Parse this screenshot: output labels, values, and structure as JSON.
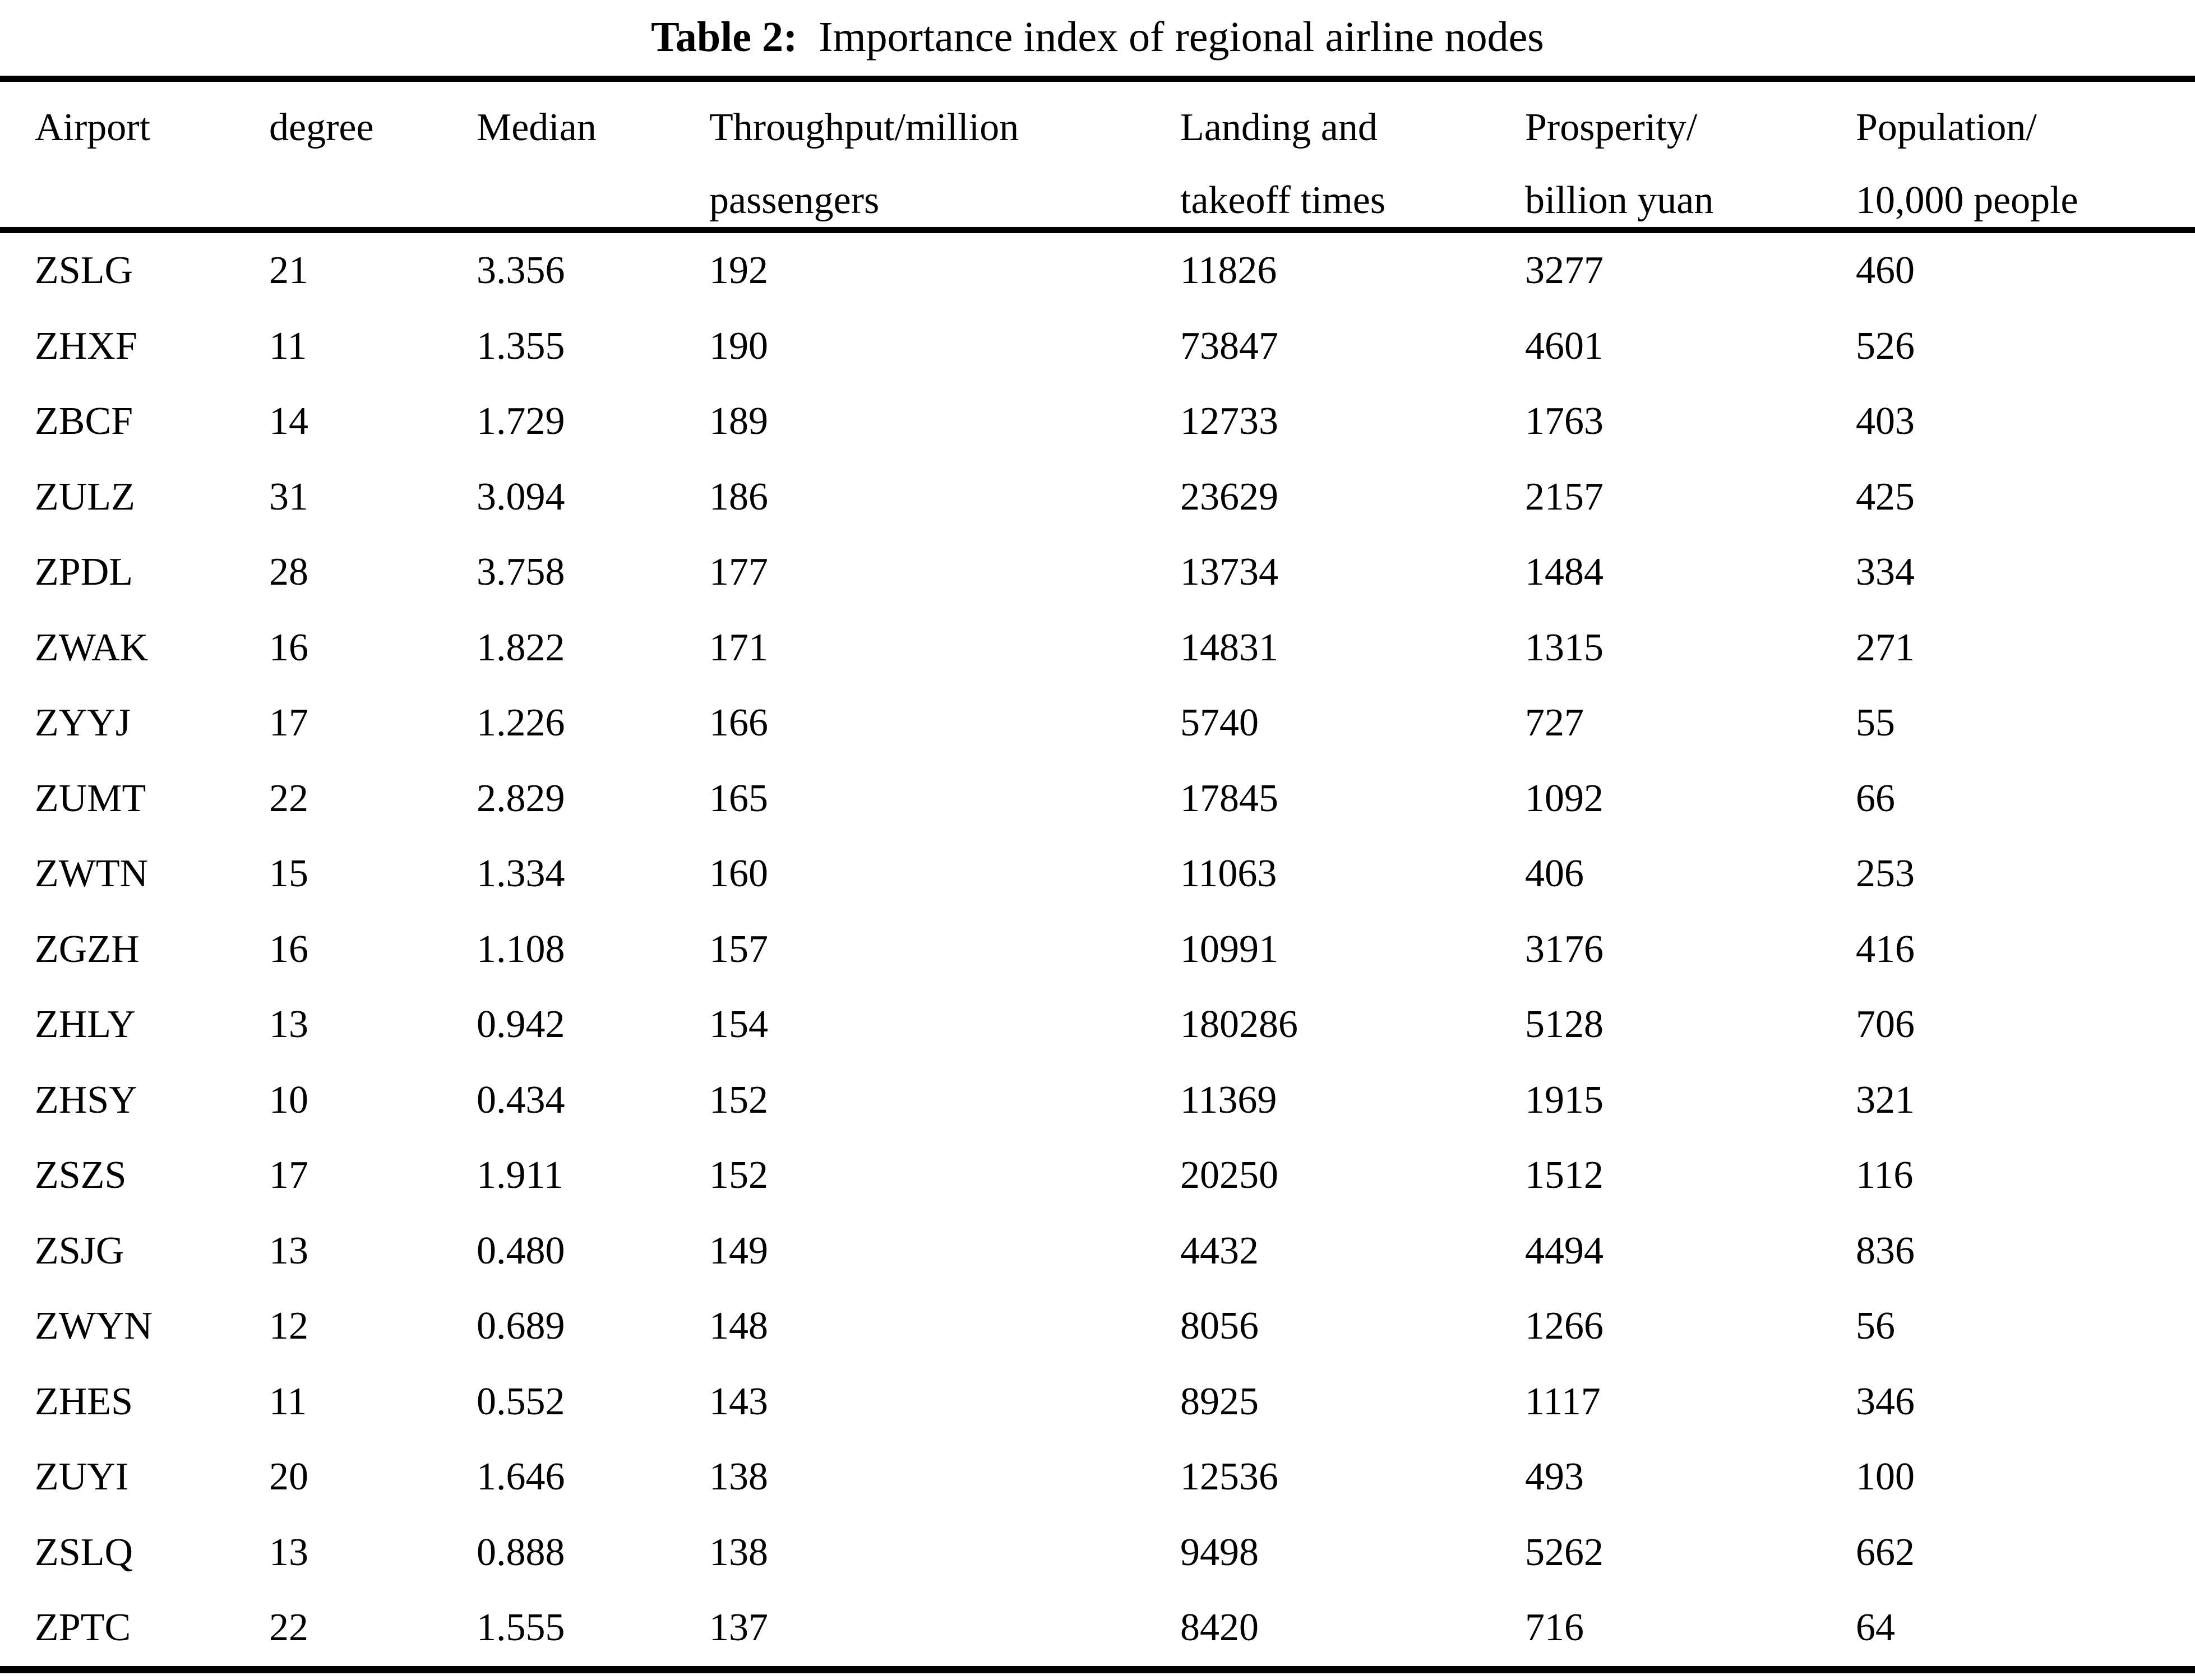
{
  "caption": {
    "label": "Table 2:",
    "text": "Importance index of regional airline nodes"
  },
  "headers": [
    {
      "line1": "Airport",
      "line2": ""
    },
    {
      "line1": "degree",
      "line2": ""
    },
    {
      "line1": "Median",
      "line2": ""
    },
    {
      "line1": "Throughput/million",
      "line2": "passengers"
    },
    {
      "line1": "Landing and",
      "line2": "takeoff times"
    },
    {
      "line1": "Prosperity/",
      "line2": "billion yuan"
    },
    {
      "line1": "Population/",
      "line2": "10,000 people"
    }
  ],
  "chart_data": {
    "type": "table",
    "title": "Table 2: Importance index of regional airline nodes",
    "columns": [
      "Airport",
      "degree",
      "Median",
      "Throughput/million passengers",
      "Landing and takeoff times",
      "Prosperity/billion yuan",
      "Population/10,000 people"
    ],
    "rows": [
      [
        "ZSLG",
        "21",
        "3.356",
        "192",
        "11826",
        "3277",
        "460"
      ],
      [
        "ZHXF",
        "11",
        "1.355",
        "190",
        "73847",
        "4601",
        "526"
      ],
      [
        "ZBCF",
        "14",
        "1.729",
        "189",
        "12733",
        "1763",
        "403"
      ],
      [
        "ZULZ",
        "31",
        "3.094",
        "186",
        "23629",
        "2157",
        "425"
      ],
      [
        "ZPDL",
        "28",
        "3.758",
        "177",
        "13734",
        "1484",
        "334"
      ],
      [
        "ZWAK",
        "16",
        "1.822",
        "171",
        "14831",
        "1315",
        "271"
      ],
      [
        "ZYYJ",
        "17",
        "1.226",
        "166",
        "5740",
        "727",
        "55"
      ],
      [
        "ZUMT",
        "22",
        "2.829",
        "165",
        "17845",
        "1092",
        "66"
      ],
      [
        "ZWTN",
        "15",
        "1.334",
        "160",
        "11063",
        "406",
        "253"
      ],
      [
        "ZGZH",
        "16",
        "1.108",
        "157",
        "10991",
        "3176",
        "416"
      ],
      [
        "ZHLY",
        "13",
        "0.942",
        "154",
        "180286",
        "5128",
        "706"
      ],
      [
        "ZHSY",
        "10",
        "0.434",
        "152",
        "11369",
        "1915",
        "321"
      ],
      [
        "ZSZS",
        "17",
        "1.911",
        "152",
        "20250",
        "1512",
        "116"
      ],
      [
        "ZSJG",
        "13",
        "0.480",
        "149",
        "4432",
        "4494",
        "836"
      ],
      [
        "ZWYN",
        "12",
        "0.689",
        "148",
        "8056",
        "1266",
        "56"
      ],
      [
        "ZHES",
        "11",
        "0.552",
        "143",
        "8925",
        "1117",
        "346"
      ],
      [
        "ZUYI",
        "20",
        "1.646",
        "138",
        "12536",
        "493",
        "100"
      ],
      [
        "ZSLQ",
        "13",
        "0.888",
        "138",
        "9498",
        "5262",
        "662"
      ],
      [
        "ZPTC",
        "22",
        "1.555",
        "137",
        "8420",
        "716",
        "64"
      ]
    ]
  }
}
